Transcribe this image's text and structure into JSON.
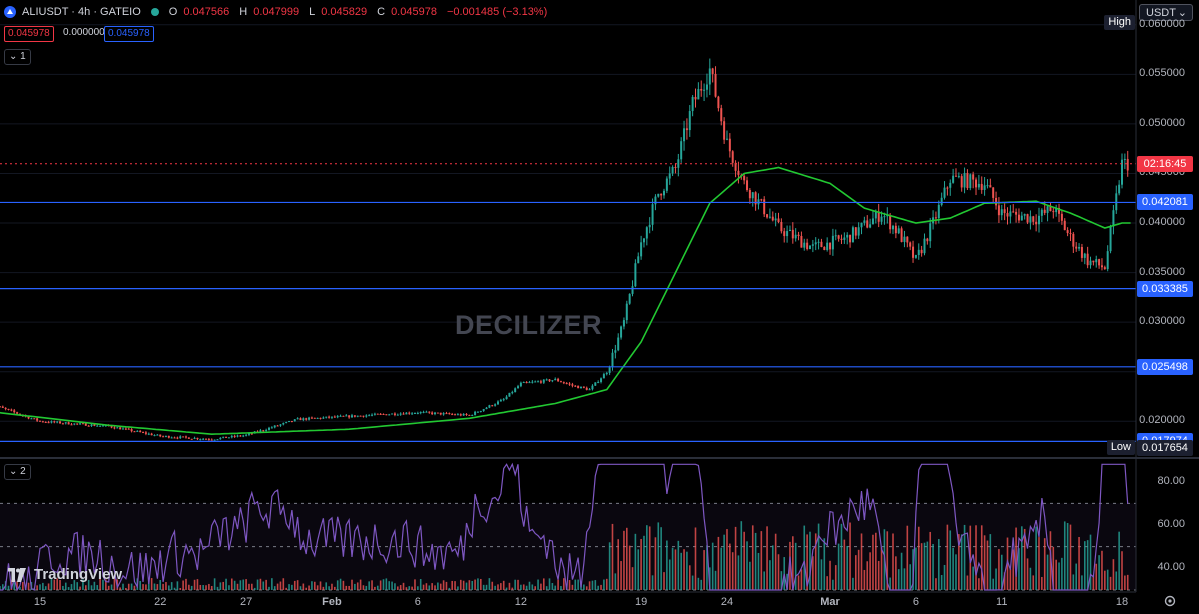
{
  "symbol": "ALIUSDT · 4h · GATEIO",
  "ohlc": {
    "o_label": "O",
    "o": "0.047566",
    "h_label": "H",
    "h": "0.047999",
    "l_label": "L",
    "l": "0.045829",
    "c_label": "C",
    "c": "0.045978",
    "change": "−0.001485 (−3.13%)"
  },
  "pills": {
    "sell": "0.045978",
    "spread": "0.000000",
    "buy": "0.045978"
  },
  "panes": {
    "main": "1",
    "rsi": "2"
  },
  "currency": "USDT",
  "high_label": "High",
  "low_label": "Low",
  "low_value": "0.017654",
  "current_price": {
    "countdown": "02:16:45",
    "color": "#f23645"
  },
  "horizontal_levels": [
    "0.042081",
    "0.033385",
    "0.025498",
    "0.017974"
  ],
  "price_axis": [
    "0.060000",
    "0.055000",
    "0.050000",
    "0.045000",
    "0.040000",
    "0.035000",
    "0.030000",
    "0.025000",
    "0.020000"
  ],
  "rsi_axis": [
    "80.00",
    "60.00",
    "40.00"
  ],
  "time_axis": [
    "15",
    "22",
    "27",
    "Feb",
    "6",
    "12",
    "19",
    "24",
    "Mar",
    "6",
    "11",
    "18"
  ],
  "watermark": "DECILIZER",
  "brand": "TradingView",
  "colors": {
    "up": "#26a69a",
    "down": "#ef5350",
    "ma": "#22c832",
    "level": "#2962ff",
    "rsi": "#7e57c2",
    "bg": "#000000"
  },
  "chart_data": {
    "type": "candlestick",
    "interval": "4h",
    "ylim": [
      0.0165,
      0.0625
    ],
    "close_path": [
      [
        "Jan 12",
        0.0218
      ],
      [
        "Jan 15",
        0.02
      ],
      [
        "Jan 19",
        0.0195
      ],
      [
        "Jan 22",
        0.0185
      ],
      [
        "Jan 25",
        0.0182
      ],
      [
        "Jan 27",
        0.0186
      ],
      [
        "Jan 30",
        0.0202
      ],
      [
        "Feb 2",
        0.0205
      ],
      [
        "Feb 6",
        0.0209
      ],
      [
        "Feb 9",
        0.0206
      ],
      [
        "Feb 11",
        0.0222
      ],
      [
        "Feb 12",
        0.0238
      ],
      [
        "Feb 14",
        0.0242
      ],
      [
        "Feb 15",
        0.0236
      ],
      [
        "Feb 16",
        0.0232
      ],
      [
        "Feb 17",
        0.025
      ],
      [
        "Feb 18",
        0.03
      ],
      [
        "Feb 19",
        0.038
      ],
      [
        "Feb 20",
        0.043
      ],
      [
        "Feb 21",
        0.0455
      ],
      [
        "Feb 22",
        0.052
      ],
      [
        "Feb 23",
        0.0555
      ],
      [
        "Feb 24",
        0.048
      ],
      [
        "Feb 25",
        0.044
      ],
      [
        "Feb 27",
        0.0395
      ],
      [
        "Feb 29",
        0.0375
      ],
      [
        "Mar 2",
        0.0385
      ],
      [
        "Mar 4",
        0.041
      ],
      [
        "Mar 5",
        0.039
      ],
      [
        "Mar 6",
        0.0362
      ],
      [
        "Mar 7",
        0.04
      ],
      [
        "Mar 8",
        0.0445
      ],
      [
        "Mar 10",
        0.044
      ],
      [
        "Mar 11",
        0.041
      ],
      [
        "Mar 13",
        0.0405
      ],
      [
        "Mar 14",
        0.0415
      ],
      [
        "Mar 15",
        0.0385
      ],
      [
        "Mar 16",
        0.0362
      ],
      [
        "Mar 17",
        0.0355
      ],
      [
        "Mar 18",
        0.046
      ]
    ],
    "ma_path": [
      [
        "Jan 12",
        0.021
      ],
      [
        "Jan 19",
        0.0196
      ],
      [
        "Jan 25",
        0.0187
      ],
      [
        "Feb 2",
        0.0192
      ],
      [
        "Feb 9",
        0.0203
      ],
      [
        "Feb 14",
        0.0218
      ],
      [
        "Feb 17",
        0.0232
      ],
      [
        "Feb 19",
        0.028
      ],
      [
        "Feb 21",
        0.035
      ],
      [
        "Feb 23",
        0.042
      ],
      [
        "Feb 25",
        0.045
      ],
      [
        "Feb 27",
        0.0456
      ],
      [
        "Mar 1",
        0.044
      ],
      [
        "Mar 3",
        0.0415
      ],
      [
        "Mar 6",
        0.04
      ],
      [
        "Mar 8",
        0.0405
      ],
      [
        "Mar 10",
        0.042
      ],
      [
        "Mar 13",
        0.0422
      ],
      [
        "Mar 15",
        0.041
      ],
      [
        "Mar 17",
        0.0395
      ],
      [
        "Mar 18",
        0.04
      ]
    ],
    "rsi_range": [
      30,
      90
    ],
    "rsi_levels": [
      70,
      50,
      30
    ]
  }
}
